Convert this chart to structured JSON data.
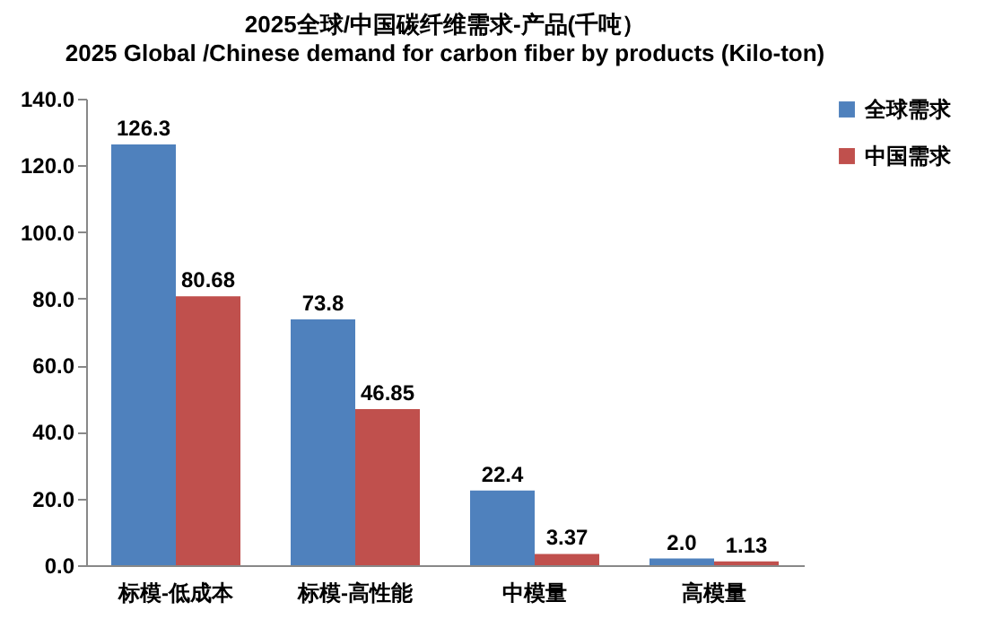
{
  "chart_data": {
    "type": "bar",
    "title": "2025全球/中国碳纤维需求-产品(千吨）",
    "subtitle": "2025 Global /Chinese demand for carbon fiber by products (Kilo-ton)",
    "categories": [
      "标模-低成本",
      "标模-高性能",
      "中模量",
      "高模量"
    ],
    "series": [
      {
        "name": "全球需求",
        "color": "#4f81bd",
        "values": [
          126.3,
          73.8,
          22.4,
          2.0
        ],
        "value_labels": [
          "126.3",
          "73.8",
          "22.4",
          "2.0"
        ]
      },
      {
        "name": "中国需求",
        "color": "#c0504d",
        "values": [
          80.68,
          46.85,
          3.37,
          1.13
        ],
        "value_labels": [
          "80.68",
          "46.85",
          "3.37",
          "1.13"
        ]
      }
    ],
    "ylim": [
      0,
      140
    ],
    "yticks": [
      {
        "value": 0,
        "label": "0.0"
      },
      {
        "value": 20,
        "label": "20.0"
      },
      {
        "value": 40,
        "label": "40.0"
      },
      {
        "value": 60,
        "label": "60.0"
      },
      {
        "value": 80,
        "label": "80.0"
      },
      {
        "value": 100,
        "label": "100.0"
      },
      {
        "value": 120,
        "label": "120.0"
      },
      {
        "value": 140,
        "label": "140.0"
      }
    ],
    "legend": "right"
  }
}
